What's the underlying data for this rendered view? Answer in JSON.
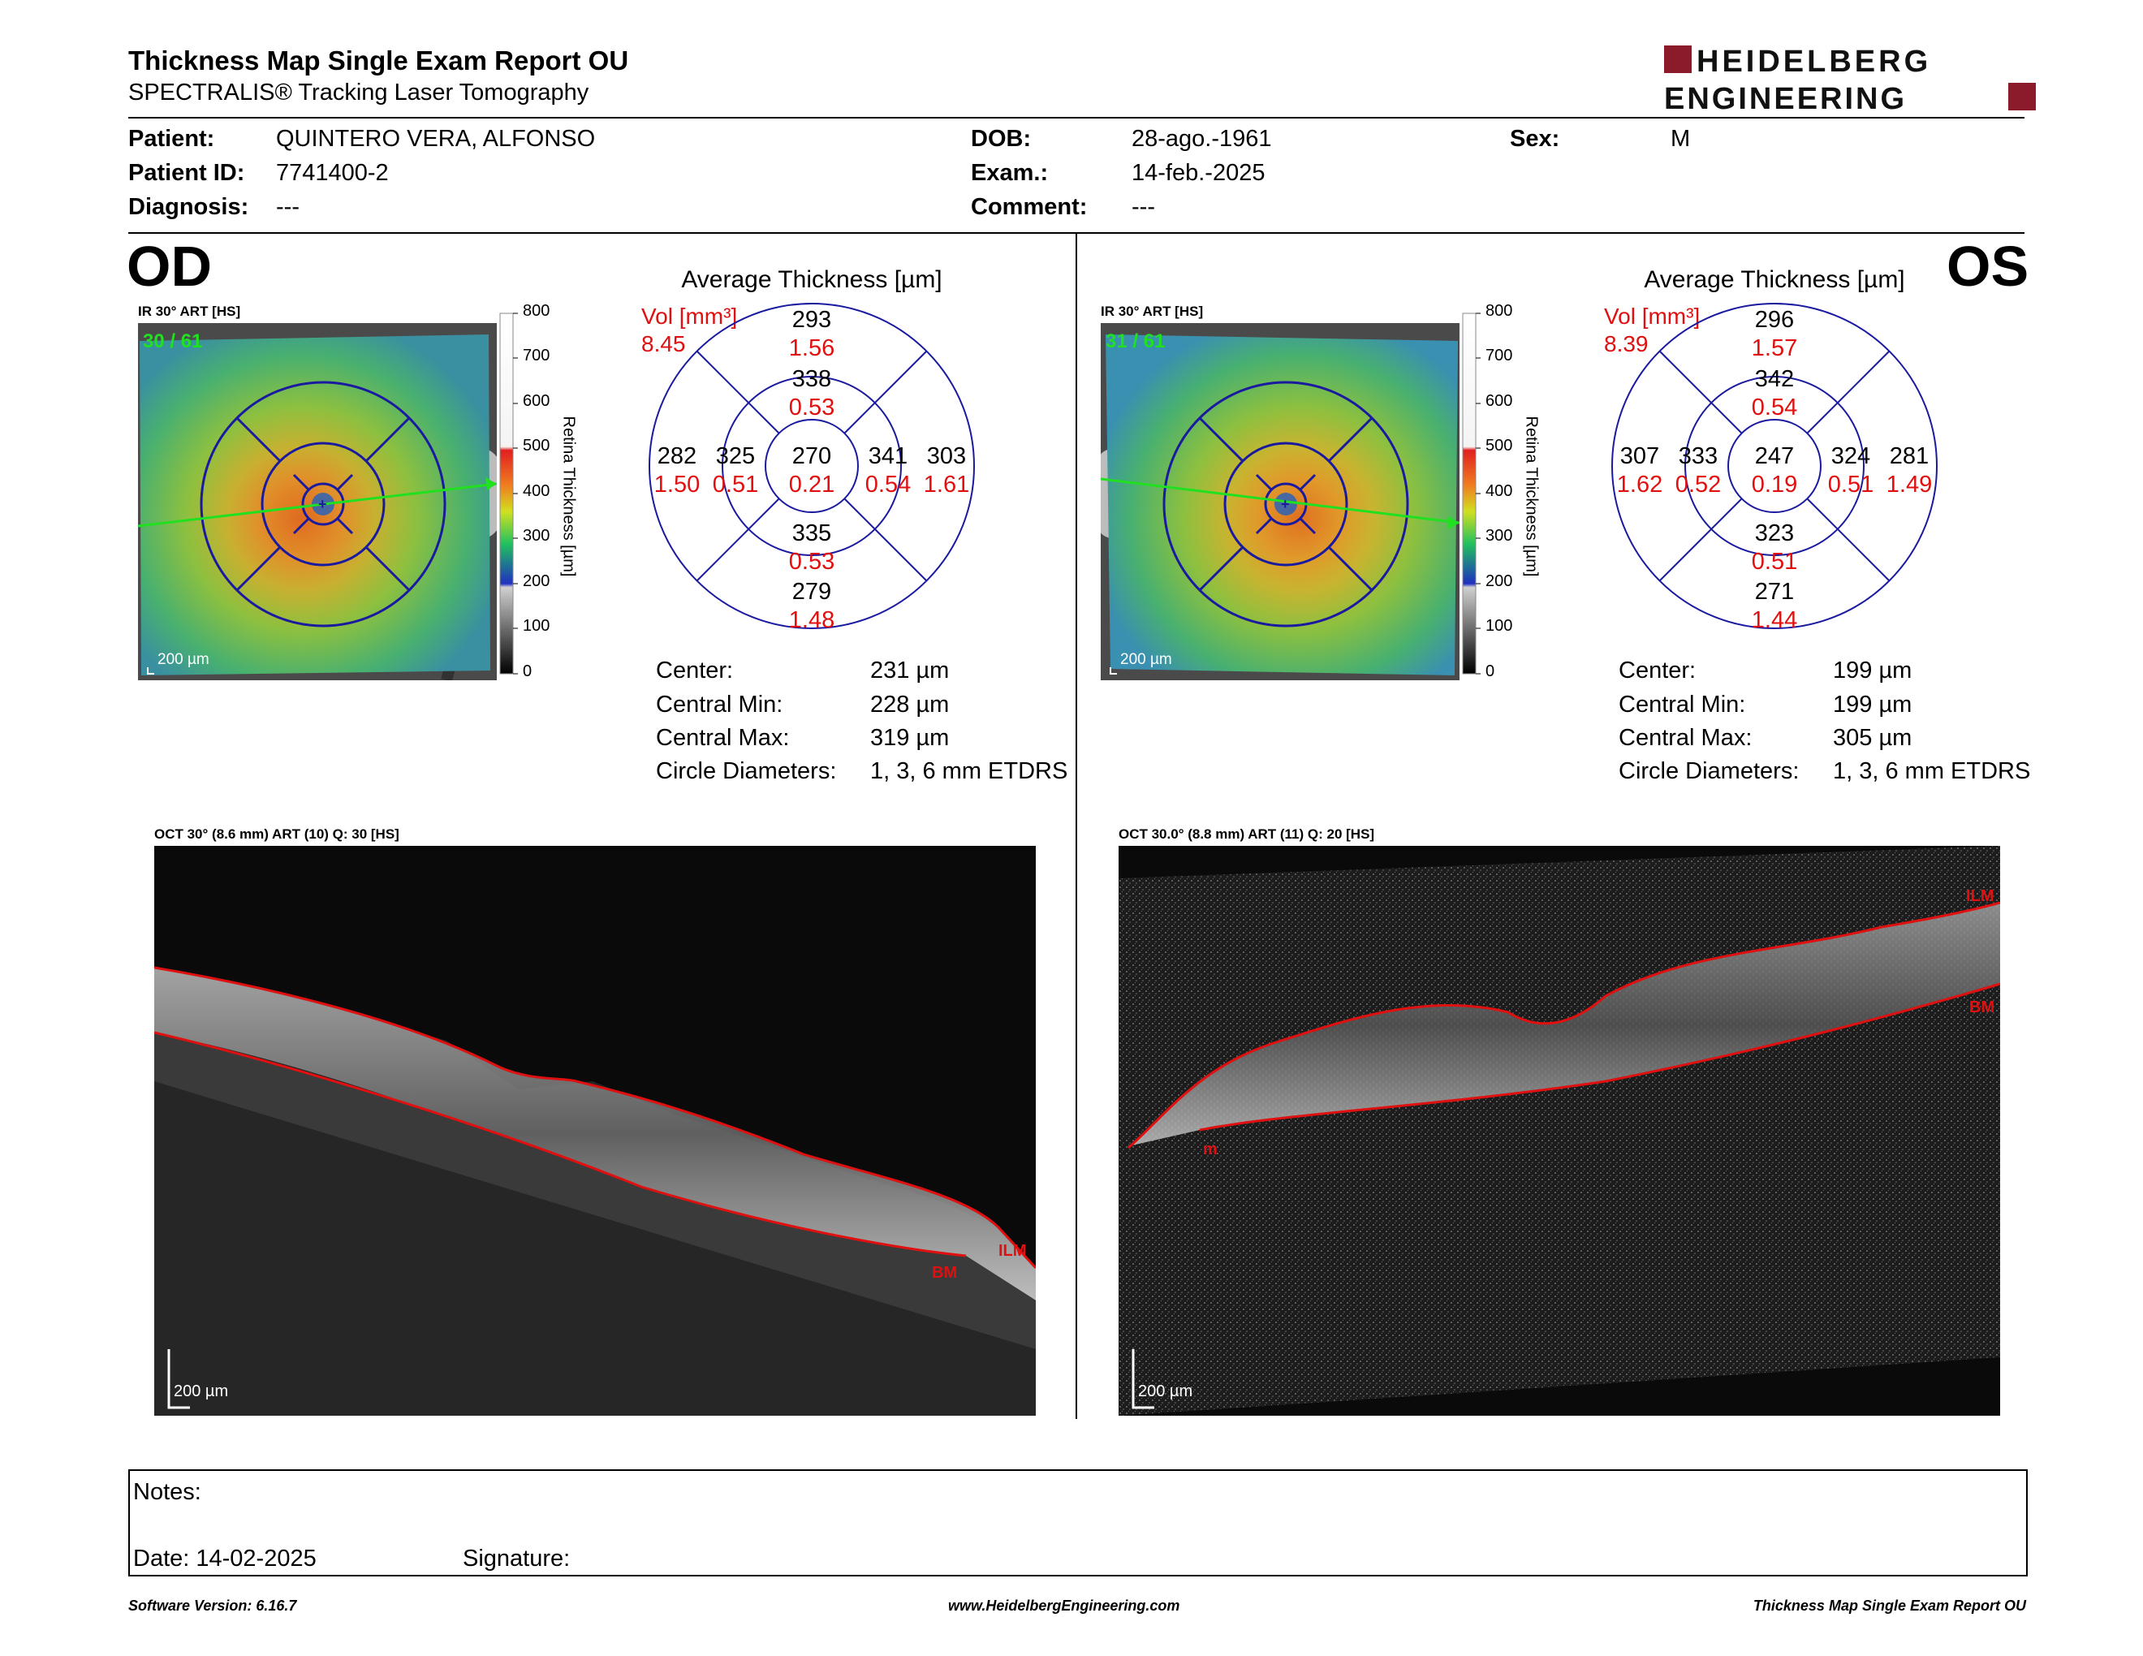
{
  "header": {
    "title": "Thickness Map Single Exam Report OU",
    "subtitle": "SPECTRALIS® Tracking Laser Tomography",
    "logo_line1": "HEIDELBERG",
    "logo_line2": "ENGINEERING"
  },
  "patient": {
    "patient_label": "Patient:",
    "patient_value": "QUINTERO VERA, ALFONSO",
    "id_label": "Patient ID:",
    "id_value": "7741400-2",
    "diagnosis_label": "Diagnosis:",
    "diagnosis_value": "---",
    "dob_label": "DOB:",
    "dob_value": "28-ago.-1961",
    "exam_label": "Exam.:",
    "exam_value": "14-feb.-2025",
    "comment_label": "Comment:",
    "comment_value": "---",
    "sex_label": "Sex:",
    "sex_value": "M"
  },
  "od": {
    "eye": "OD",
    "ir_caption": "IR 30° ART [HS]",
    "frame_label": "30 / 61",
    "scale_label": "200 µm",
    "avg_title": "Average Thickness [µm]",
    "vol_label": "Vol [mm³]",
    "vol_total": "8.45",
    "etdrs": {
      "center_t": "270",
      "center_v": "0.21",
      "inner_sup_t": "338",
      "inner_sup_v": "0.53",
      "inner_inf_t": "335",
      "inner_inf_v": "0.53",
      "inner_left_t": "325",
      "inner_left_v": "0.51",
      "inner_right_t": "341",
      "inner_right_v": "0.54",
      "outer_sup_t": "293",
      "outer_sup_v": "1.56",
      "outer_inf_t": "279",
      "outer_inf_v": "1.48",
      "outer_left_t": "282",
      "outer_left_v": "1.50",
      "outer_right_t": "303",
      "outer_right_v": "1.61"
    },
    "stats": {
      "center_label": "Center:",
      "center_value": "231 µm",
      "min_label": "Central Min:",
      "min_value": "228 µm",
      "max_label": "Central Max:",
      "max_value": "319 µm",
      "diam_label": "Circle Diameters:",
      "diam_value": "1, 3, 6 mm ETDRS"
    },
    "oct_caption": "OCT 30° (8.6 mm) ART (10) Q: 30 [HS]",
    "oct_scale": "200 µm",
    "ilm_label": "ILM",
    "bm_label": "BM"
  },
  "os": {
    "eye": "OS",
    "ir_caption": "IR 30° ART [HS]",
    "frame_label": "31 / 61",
    "scale_label": "200 µm",
    "avg_title": "Average Thickness [µm]",
    "vol_label": "Vol [mm³]",
    "vol_total": "8.39",
    "etdrs": {
      "center_t": "247",
      "center_v": "0.19",
      "inner_sup_t": "342",
      "inner_sup_v": "0.54",
      "inner_inf_t": "323",
      "inner_inf_v": "0.51",
      "inner_left_t": "333",
      "inner_left_v": "0.52",
      "inner_right_t": "324",
      "inner_right_v": "0.51",
      "outer_sup_t": "296",
      "outer_sup_v": "1.57",
      "outer_inf_t": "271",
      "outer_inf_v": "1.44",
      "outer_left_t": "307",
      "outer_left_v": "1.62",
      "outer_right_t": "281",
      "outer_right_v": "1.49"
    },
    "stats": {
      "center_label": "Center:",
      "center_value": "199 µm",
      "min_label": "Central Min:",
      "min_value": "199 µm",
      "max_label": "Central Max:",
      "max_value": "305 µm",
      "diam_label": "Circle Diameters:",
      "diam_value": "1, 3, 6 mm ETDRS"
    },
    "oct_caption": "OCT 30.0° (8.8 mm) ART (11) Q: 20 [HS]",
    "oct_scale": "200 µm",
    "ilm_label": "ILM",
    "bm_label": "BM",
    "m_label": "m"
  },
  "colorbar": {
    "ticks": [
      "800",
      "700",
      "600",
      "500",
      "400",
      "300",
      "200",
      "100",
      "0"
    ],
    "label": "Retina  Thickness [µm]"
  },
  "notes": {
    "notes_label": "Notes:",
    "date_label": "Date: 14-02-2025",
    "signature_label": "Signature:"
  },
  "footer": {
    "software": "Software Version: 6.16.7",
    "website": "www.HeidelbergEngineering.com",
    "report_name": "Thickness Map Single Exam Report OU"
  },
  "colors": {
    "accent_red": "#e01010",
    "grid_blue": "#1a1aa0",
    "logo_red": "#8b1a2b"
  }
}
